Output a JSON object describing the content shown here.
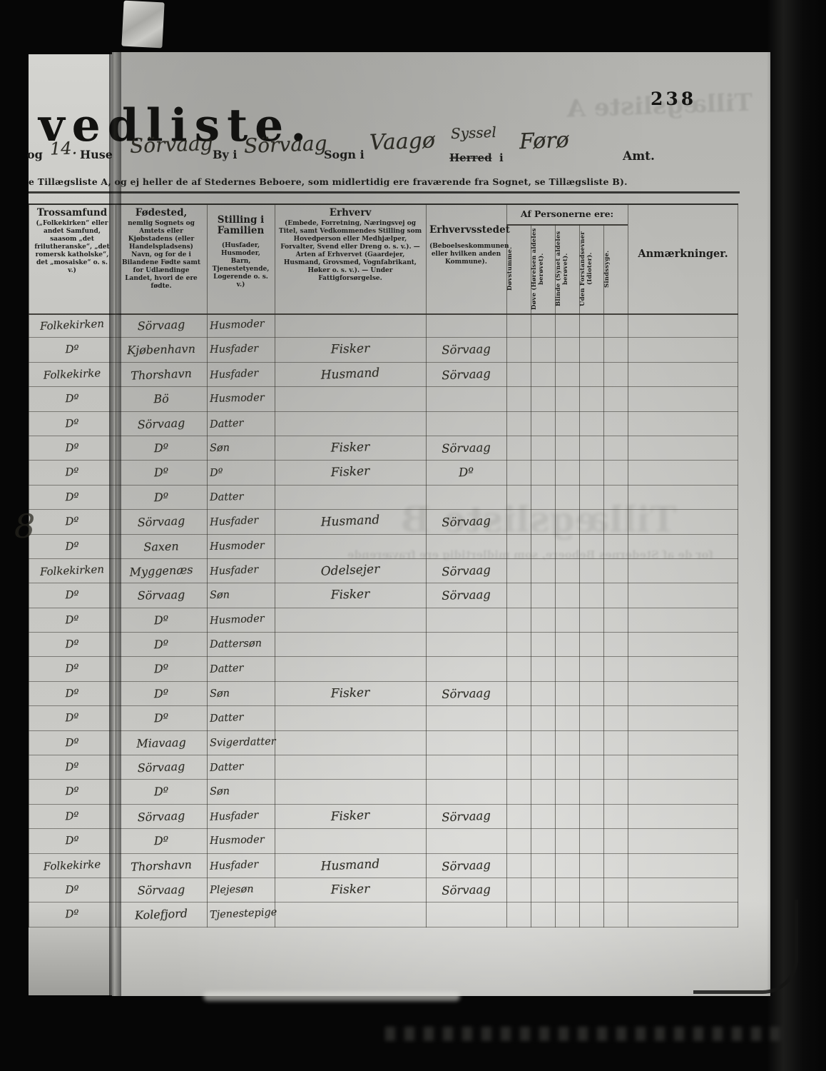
{
  "page": {
    "number": "238",
    "title_fragment": "vedliste.",
    "header": {
      "prefix": "og",
      "house_number": "14.",
      "huse_label": "Huse",
      "by_value": "Sörvaag",
      "by_label": "By i",
      "sogn_value": "Sörvaag",
      "sogn_label": "Sogn i",
      "herred_value": "Vaagø",
      "syssel_overwrite": "Syssel",
      "herred_label": "Herred",
      "i_label": "i",
      "amt_value": "Førø",
      "amt_label": "Amt."
    },
    "note": "e Tillægsliste A, og ej heller de af Stedernes Beboere, som midlertidig ere fraværende fra Sognet, se Tillægsliste B).",
    "margin_mark": "8",
    "ghosts": {
      "top": "Tillægsliste A",
      "middle": "Tillægsliste B",
      "middle_sub": "for de af Stedernes Beboere, som midlertidig ere fraværende"
    }
  },
  "table": {
    "group_header": "Af Personerne ere:",
    "anmaerkninger_label": "Anmærkninger.",
    "columns": [
      {
        "title": "Trossamfund",
        "sub": "(„Folkekirken“ eller andet Samfund, saasom „det frilutheranske“, „det romersk katholske“, det „mosaiske“ o. s. v.)"
      },
      {
        "title": "Fødested,",
        "sub": "nemlig Sognets og Amtets eller Kjøbstadens (eller Handelspladsens) Navn, og for de i Bilandene Fødte samt for Udlændinge Landet, hvori de ere fødte."
      },
      {
        "title": "Stilling i Familien",
        "sub": "(Husfader, Husmoder, Barn, Tjenestetyende, Logerende o. s. v.)"
      },
      {
        "title": "Erhverv",
        "sub": "(Embede, Forretning, Næringsvej og Titel, samt Vedkommendes Stilling som Hovedperson eller Medhjælper, Forvalter, Svend eller Dreng o. s. v.). — Arten af Erhvervet (Gaardejer, Husmand, Grovsmed, Vognfabrikant, Høker o. s. v.). — Under Fattigforsørgelse."
      },
      {
        "title": "Erhvervsstedet",
        "sub": "(Beboelseskommunen eller hvilken anden Kommune)."
      }
    ],
    "vertical_columns": [
      "Døvstumme.",
      "Døve (Hørelsen aldeles berøvet).",
      "Blinde (Synet aldeles berøvet).",
      "Uden Forstandsevner (Idioter).",
      "Sindssyge."
    ],
    "rows": [
      {
        "trossamfund": "Folkekirken",
        "fodested": "Sörvaag",
        "stilling": "Husmoder",
        "erhverv": "",
        "erhvervssted": ""
      },
      {
        "trossamfund": "Dº",
        "fodested": "Kjøbenhavn",
        "stilling": "Husfader",
        "erhverv": "Fisker",
        "erhvervssted": "Sörvaag"
      },
      {
        "trossamfund": "Folkekirke",
        "fodested": "Thorshavn",
        "stilling": "Husfader",
        "erhverv": "Husmand",
        "erhvervssted": "Sörvaag"
      },
      {
        "trossamfund": "Dº",
        "fodested": "Bö",
        "stilling": "Husmoder",
        "erhverv": "",
        "erhvervssted": ""
      },
      {
        "trossamfund": "Dº",
        "fodested": "Sörvaag",
        "stilling": "Datter",
        "erhverv": "",
        "erhvervssted": ""
      },
      {
        "trossamfund": "Dº",
        "fodested": "Dº",
        "stilling": "Søn",
        "erhverv": "Fisker",
        "erhvervssted": "Sörvaag"
      },
      {
        "trossamfund": "Dº",
        "fodested": "Dº",
        "stilling": "Dº",
        "erhverv": "Fisker",
        "erhvervssted": "Dº"
      },
      {
        "trossamfund": "Dº",
        "fodested": "Dº",
        "stilling": "Datter",
        "erhverv": "",
        "erhvervssted": ""
      },
      {
        "trossamfund": "Dº",
        "fodested": "Sörvaag",
        "stilling": "Husfader",
        "erhverv": "Husmand",
        "erhvervssted": "Sörvaag"
      },
      {
        "trossamfund": "Dº",
        "fodested": "Saxen",
        "stilling": "Husmoder",
        "erhverv": "",
        "erhvervssted": ""
      },
      {
        "trossamfund": "Folkekirken",
        "fodested": "Myggenæs",
        "stilling": "Husfader",
        "erhverv": "Odelsejer",
        "erhvervssted": "Sörvaag"
      },
      {
        "trossamfund": "Dº",
        "fodested": "Sörvaag",
        "stilling": "Søn",
        "erhverv": "Fisker",
        "erhvervssted": "Sörvaag"
      },
      {
        "trossamfund": "Dº",
        "fodested": "Dº",
        "stilling": "Husmoder",
        "erhverv": "",
        "erhvervssted": ""
      },
      {
        "trossamfund": "Dº",
        "fodested": "Dº",
        "stilling": "Dattersøn",
        "erhverv": "",
        "erhvervssted": ""
      },
      {
        "trossamfund": "Dº",
        "fodested": "Dº",
        "stilling": "Datter",
        "erhverv": "",
        "erhvervssted": ""
      },
      {
        "trossamfund": "Dº",
        "fodested": "Dº",
        "stilling": "Søn",
        "erhverv": "Fisker",
        "erhvervssted": "Sörvaag"
      },
      {
        "trossamfund": "Dº",
        "fodested": "Dº",
        "stilling": "Datter",
        "erhverv": "",
        "erhvervssted": ""
      },
      {
        "trossamfund": "Dº",
        "fodested": "Miavaag",
        "stilling": "Svigerdatter",
        "erhverv": "",
        "erhvervssted": ""
      },
      {
        "trossamfund": "Dº",
        "fodested": "Sörvaag",
        "stilling": "Datter",
        "erhverv": "",
        "erhvervssted": ""
      },
      {
        "trossamfund": "Dº",
        "fodested": "Dº",
        "stilling": "Søn",
        "erhverv": "",
        "erhvervssted": ""
      },
      {
        "trossamfund": "Dº",
        "fodested": "Sörvaag",
        "stilling": "Husfader",
        "erhverv": "Fisker",
        "erhvervssted": "Sörvaag"
      },
      {
        "trossamfund": "Dº",
        "fodested": "Dº",
        "stilling": "Husmoder",
        "erhverv": "",
        "erhvervssted": ""
      },
      {
        "trossamfund": "Folkekirke",
        "fodested": "Thorshavn",
        "stilling": "Husfader",
        "erhverv": "Husmand",
        "erhvervssted": "Sörvaag"
      },
      {
        "trossamfund": "Dº",
        "fodested": "Sörvaag",
        "stilling": "Plejesøn",
        "erhverv": "Fisker",
        "erhvervssted": "Sörvaag"
      },
      {
        "trossamfund": "Dº",
        "fodested": "Kolefjord",
        "stilling": "Tjenestepige",
        "erhverv": "",
        "erhvervssted": ""
      }
    ]
  }
}
